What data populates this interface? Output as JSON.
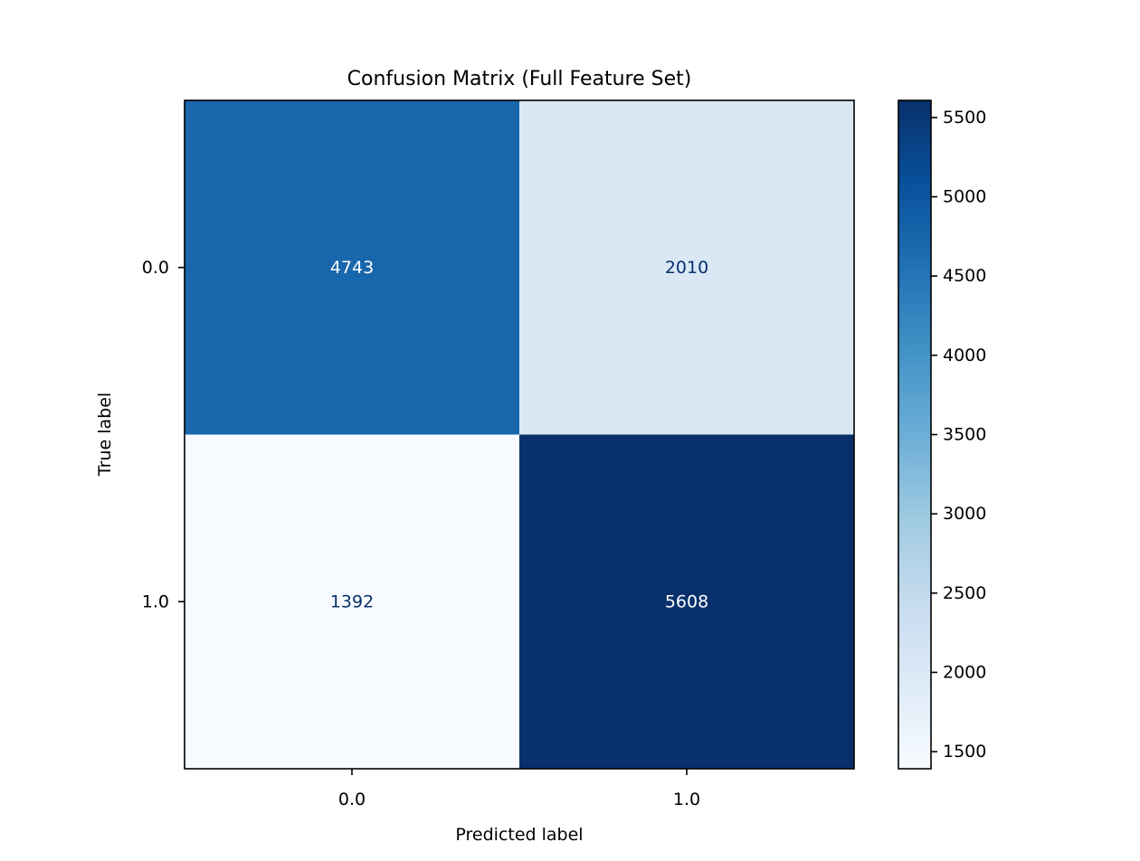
{
  "chart_data": {
    "type": "heatmap",
    "title": "Confusion Matrix (Full Feature Set)",
    "xlabel": "Predicted label",
    "ylabel": "True label",
    "x_categories": [
      "0.0",
      "1.0"
    ],
    "y_categories": [
      "0.0",
      "1.0"
    ],
    "values": [
      [
        4743,
        2010
      ],
      [
        1392,
        5608
      ]
    ],
    "colormap": "Blues",
    "color_range": [
      1392,
      5608
    ],
    "colorbar_ticks": [
      1500,
      2000,
      2500,
      3000,
      3500,
      4000,
      4500,
      5000,
      5500
    ],
    "colorbar_tick_labels": [
      "1500",
      "2000",
      "2500",
      "3000",
      "3500",
      "4000",
      "4500",
      "5000",
      "5500"
    ],
    "grid": false,
    "text_colors": {
      "dark": "#08306b",
      "light": "#ffffff"
    }
  }
}
